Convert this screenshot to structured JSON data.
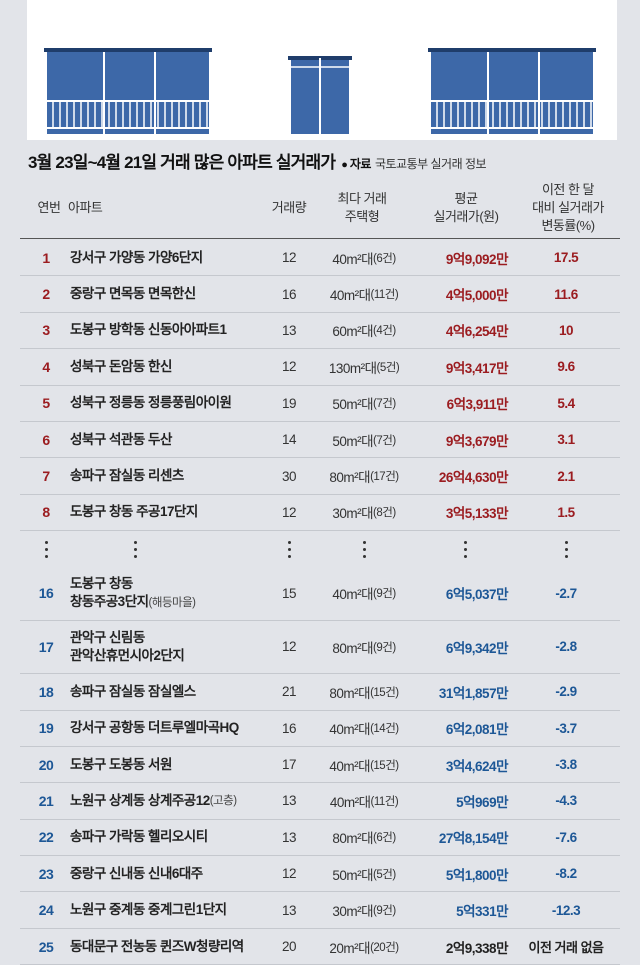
{
  "title": "3월 23일~4월 21일 거래 많은 아파트 실거래가",
  "source": {
    "dot": "●",
    "label": "자료",
    "text": "국토교통부 실거래 정보"
  },
  "headers": {
    "rank": "연번",
    "apt": "아파트",
    "count": "거래량",
    "type_1": "최다 거래",
    "type_2": "주택형",
    "price_1": "평균",
    "price_2": "실거래가(원)",
    "change_1": "이전 한 달",
    "change_2": "대비 실거래가",
    "change_3": "변동률(%)"
  },
  "colors": {
    "up": "#9b1c20",
    "down": "#1d5796",
    "building": "#3d68a8"
  },
  "chart_data": {
    "type": "table",
    "columns": [
      "연번",
      "아파트",
      "거래량",
      "최다 거래 주택형",
      "평균 실거래가(원)",
      "이전 한 달 대비 실거래가 변동률(%)"
    ],
    "rows_top": [
      {
        "rank": "1",
        "apt": "강서구 가양동 가양6단지",
        "count": "12",
        "type": "40m²대",
        "type_cnt": "(6건)",
        "price": "9억9,092만",
        "change": "17.5",
        "dir": "up"
      },
      {
        "rank": "2",
        "apt": "중랑구 면목동 면목한신",
        "count": "16",
        "type": "40m²대",
        "type_cnt": "(11건)",
        "price": "4억5,000만",
        "change": "11.6",
        "dir": "up"
      },
      {
        "rank": "3",
        "apt": "도봉구 방학동 신동아아파트1",
        "count": "13",
        "type": "60m²대",
        "type_cnt": "(4건)",
        "price": "4억6,254만",
        "change": "10",
        "dir": "up"
      },
      {
        "rank": "4",
        "apt": "성북구 돈암동 한신",
        "count": "12",
        "type": "130m²대",
        "type_cnt": "(5건)",
        "price": "9억3,417만",
        "change": "9.6",
        "dir": "up"
      },
      {
        "rank": "5",
        "apt": "성북구 정릉동 정릉풍림아이원",
        "count": "19",
        "type": "50m²대",
        "type_cnt": "(7건)",
        "price": "6억3,911만",
        "change": "5.4",
        "dir": "up"
      },
      {
        "rank": "6",
        "apt": "성북구 석관동 두산",
        "count": "14",
        "type": "50m²대",
        "type_cnt": "(7건)",
        "price": "9억3,679만",
        "change": "3.1",
        "dir": "up"
      },
      {
        "rank": "7",
        "apt": "송파구 잠실동 리센츠",
        "count": "30",
        "type": "80m²대",
        "type_cnt": "(17건)",
        "price": "26억4,630만",
        "change": "2.1",
        "dir": "up"
      },
      {
        "rank": "8",
        "apt": "도봉구 창동 주공17단지",
        "count": "12",
        "type": "30m²대",
        "type_cnt": "(8건)",
        "price": "3억5,133만",
        "change": "1.5",
        "dir": "up"
      }
    ],
    "rows_bottom": [
      {
        "rank": "16",
        "apt": "도봉구 창동",
        "apt2": "창동주공3단지",
        "apt2_sub": "(해등마을)",
        "count": "15",
        "type": "40m²대",
        "type_cnt": "(9건)",
        "price": "6억5,037만",
        "change": "-2.7",
        "dir": "down"
      },
      {
        "rank": "17",
        "apt": "관악구 신림동",
        "apt2": "관악산휴먼시아2단지",
        "apt2_sub": "",
        "count": "12",
        "type": "80m²대",
        "type_cnt": "(9건)",
        "price": "6억9,342만",
        "change": "-2.8",
        "dir": "down"
      },
      {
        "rank": "18",
        "apt": "송파구 잠실동 잠실엘스",
        "count": "21",
        "type": "80m²대",
        "type_cnt": "(15건)",
        "price": "31억1,857만",
        "change": "-2.9",
        "dir": "down"
      },
      {
        "rank": "19",
        "apt": "강서구 공항동 더트루엘마곡HQ",
        "count": "16",
        "type": "40m²대",
        "type_cnt": "(14건)",
        "price": "6억2,081만",
        "change": "-3.7",
        "dir": "down"
      },
      {
        "rank": "20",
        "apt": "도봉구 도봉동 서원",
        "count": "17",
        "type": "40m²대",
        "type_cnt": "(15건)",
        "price": "3억4,624만",
        "change": "-3.8",
        "dir": "down"
      },
      {
        "rank": "21",
        "apt": "노원구 상계동 상계주공12",
        "apt_sub": "(고층)",
        "count": "13",
        "type": "40m²대",
        "type_cnt": "(11건)",
        "price": "5억969만",
        "change": "-4.3",
        "dir": "down"
      },
      {
        "rank": "22",
        "apt": "송파구 가락동 헬리오시티",
        "count": "13",
        "type": "80m²대",
        "type_cnt": "(6건)",
        "price": "27억8,154만",
        "change": "-7.6",
        "dir": "down"
      },
      {
        "rank": "23",
        "apt": "중랑구 신내동 신내6대주",
        "count": "12",
        "type": "50m²대",
        "type_cnt": "(5건)",
        "price": "5억1,800만",
        "change": "-8.2",
        "dir": "down"
      },
      {
        "rank": "24",
        "apt": "노원구 중계동 중계그린1단지",
        "count": "13",
        "type": "30m²대",
        "type_cnt": "(9건)",
        "price": "5억331만",
        "change": "-12.3",
        "dir": "down"
      },
      {
        "rank": "25",
        "apt": "동대문구 전농동 퀸즈W청량리역",
        "count": "20",
        "type": "20m²대",
        "type_cnt": "(20건)",
        "price": "2억9,338만",
        "change": "이전 거래 없음",
        "dir": "neutral"
      }
    ]
  }
}
